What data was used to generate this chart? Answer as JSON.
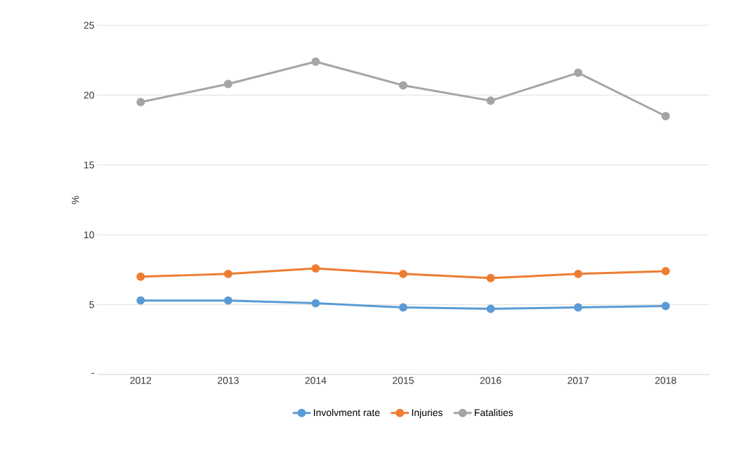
{
  "chart_data": {
    "type": "line",
    "ylabel": "%",
    "categories": [
      "2012",
      "2013",
      "2014",
      "2015",
      "2016",
      "2017",
      "2018"
    ],
    "series": [
      {
        "name": "Involvment rate",
        "color": "#5b9bd5",
        "values": [
          5.3,
          5.3,
          5.1,
          4.8,
          4.7,
          4.8,
          4.9
        ]
      },
      {
        "name": "Injuries",
        "color": "#ed7d31",
        "values": [
          7.0,
          7.2,
          7.6,
          7.2,
          6.9,
          7.2,
          7.4
        ]
      },
      {
        "name": "Fatalities",
        "color": "#a5a5a5",
        "values": [
          19.5,
          20.8,
          22.4,
          20.7,
          19.6,
          21.6,
          18.5
        ]
      }
    ],
    "ylim": [
      0,
      25
    ],
    "yticks": [
      {
        "value": 0,
        "label": "-"
      },
      5,
      10,
      15,
      20,
      25
    ],
    "grid": "y",
    "legend": "bottom",
    "marker": "circle",
    "line_style": "solid"
  }
}
